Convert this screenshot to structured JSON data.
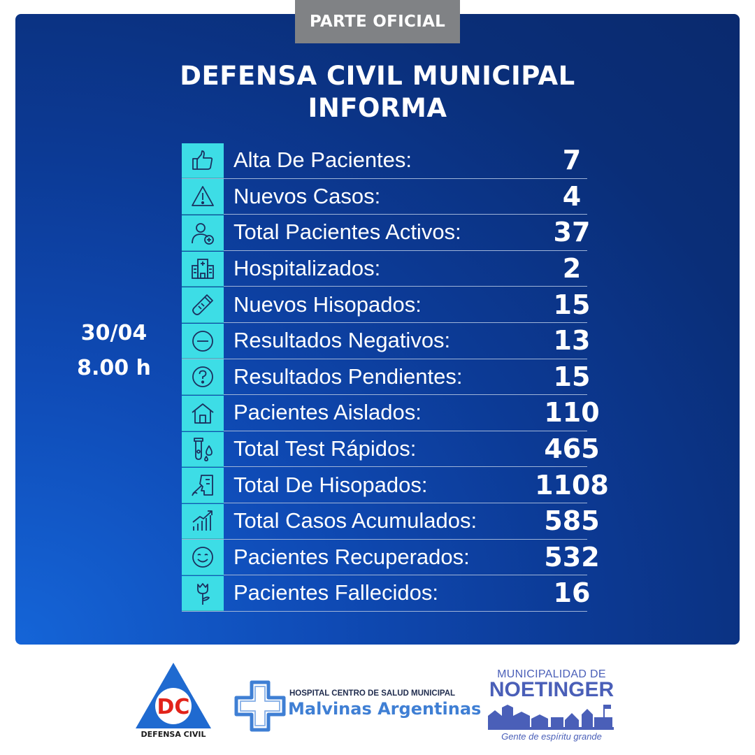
{
  "badge": "PARTE OFICIAL",
  "title": {
    "line1": "DEFENSA CIVIL MUNICIPAL",
    "line2": "INFORMA"
  },
  "report": {
    "date": "30/04",
    "time": "8.00 h"
  },
  "colors": {
    "panel": "#0c3a95",
    "icon_column": "#3ddde6",
    "badge": "#808285"
  },
  "stats": [
    {
      "icon": "thumbs-up-icon",
      "label": "Alta De Pacientes:",
      "value": "7"
    },
    {
      "icon": "warning-icon",
      "label": "Nuevos Casos:",
      "value": "4"
    },
    {
      "icon": "patient-plus-icon",
      "label": "Total Pacientes Activos:",
      "value": "37"
    },
    {
      "icon": "hospital-icon",
      "label": "Hospitalizados:",
      "value": "2"
    },
    {
      "icon": "swab-tube-icon",
      "label": "Nuevos Hisopados:",
      "value": "15"
    },
    {
      "icon": "minus-circle-icon",
      "label": "Resultados Negativos:",
      "value": "13"
    },
    {
      "icon": "question-circle-icon",
      "label": "Resultados Pendientes:",
      "value": "15"
    },
    {
      "icon": "house-icon",
      "label": "Pacientes Aislados:",
      "value": "110"
    },
    {
      "icon": "test-tube-drop-icon",
      "label": "Total Test Rápidos:",
      "value": "465"
    },
    {
      "icon": "nasal-swab-icon",
      "label": "Total De Hisopados:",
      "value": "1108"
    },
    {
      "icon": "growth-chart-icon",
      "label": "Total Casos Acumulados:",
      "value": "585"
    },
    {
      "icon": "smile-icon",
      "label": "Pacientes Recuperados:",
      "value": "532"
    },
    {
      "icon": "rose-icon",
      "label": "Pacientes Fallecidos:",
      "value": "16"
    }
  ],
  "footer": {
    "defensa_civil": {
      "letters": "DC",
      "caption": "DEFENSA CIVIL"
    },
    "hospital": {
      "line1": "HOSPITAL CENTRO DE SALUD MUNICIPAL",
      "line2": "Malvinas Argentinas"
    },
    "municipalidad": {
      "line1": "MUNICIPALIDAD DE",
      "line2": "NOETINGER",
      "tagline": "Gente de espíritu grande"
    }
  }
}
